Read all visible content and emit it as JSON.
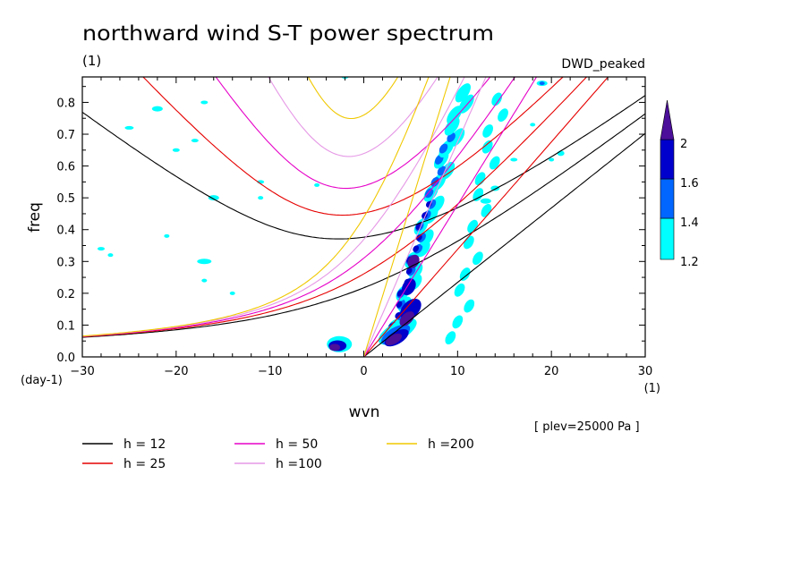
{
  "chart_data": {
    "type": "contour",
    "title": "northward wind S-T power spectrum",
    "ylabel_units": "(1)",
    "model_label": "DWD_peaked",
    "xlabel": "wvn",
    "xlabel_units": "(1)",
    "ylabel": "freq",
    "y_corner_units": "(day-1)",
    "note": "[ plev=25000 Pa ]",
    "xlim": [
      -30,
      30
    ],
    "ylim": [
      0,
      0.88
    ],
    "x_ticks": [
      -30,
      -20,
      -10,
      0,
      10,
      20,
      30
    ],
    "x_tick_labels": [
      "−30",
      "−20",
      "−10",
      "0",
      "10",
      "20",
      "30"
    ],
    "y_ticks": [
      0.0,
      0.1,
      0.2,
      0.3,
      0.4,
      0.5,
      0.6,
      0.7,
      0.8
    ],
    "y_tick_labels": [
      "0.0",
      "0.1",
      "0.2",
      "0.3",
      "0.4",
      "0.5",
      "0.6",
      "0.7",
      "0.8"
    ],
    "colorbar": {
      "levels": [
        1.2,
        1.4,
        1.6,
        2
      ],
      "labels": [
        "1.2",
        "1.4",
        "1.6",
        "2"
      ],
      "colors": [
        "#00ffff",
        "#0066ff",
        "#0000cc",
        "#4b0f99"
      ]
    },
    "dispersion_curves": [
      {
        "name": "h = 12",
        "h": 12,
        "color": "#000000"
      },
      {
        "name": "h = 25",
        "h": 25,
        "color": "#e60000"
      },
      {
        "name": "h = 50",
        "h": 50,
        "color": "#e600c8"
      },
      {
        "name": "h =100",
        "h": 100,
        "color": "#e699e6"
      },
      {
        "name": "h =200",
        "h": 200,
        "color": "#f0c800"
      }
    ]
  }
}
